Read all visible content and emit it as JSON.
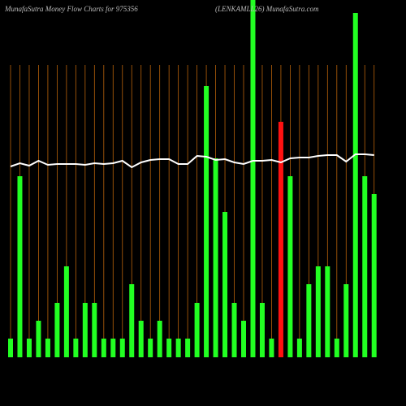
{
  "chart_data": {
    "type": "bar",
    "title": "MunafaSutra  Money Flow  Charts for 975356",
    "subtitle": "(LENKAMLL26) MunafaSutra.com",
    "categories": [
      null,
      null,
      null,
      null,
      null,
      null,
      null,
      null,
      null,
      null,
      null,
      null,
      null,
      null,
      null,
      null,
      null,
      null,
      null,
      null,
      null,
      null,
      null,
      null,
      null,
      null,
      null,
      null,
      null,
      null,
      null,
      null,
      null,
      null,
      null,
      null,
      null,
      null,
      null,
      null
    ],
    "series": [
      {
        "type": "bar",
        "colors": [
          "#22ff22",
          "#22ff22",
          "#22ff22",
          "#22ff22",
          "#22ff22",
          "#22ff22",
          "#22ff22",
          "#22ff22",
          "#22ff22",
          "#22ff22",
          "#22ff22",
          "#22ff22",
          "#22ff22",
          "#22ff22",
          "#22ff22",
          "#22ff22",
          "#22ff22",
          "#22ff22",
          "#22ff22",
          "#22ff22",
          "#22ff22",
          "#22ff22",
          "#22ff22",
          "#22ff22",
          "#22ff22",
          "#22ff22",
          "#22ff22",
          "#22ff22",
          "#22ff22",
          "#ff1111",
          "#22ff22",
          "#22ff22",
          "#22ff22",
          "#22ff22",
          "#22ff22",
          "#22ff22",
          "#22ff22",
          "#22ff22",
          "#22ff22",
          "#22ff22"
        ],
        "values": [
          23,
          223,
          23,
          45,
          23,
          67,
          112,
          23,
          67,
          67,
          23,
          23,
          23,
          90,
          45,
          23,
          45,
          23,
          23,
          23,
          67,
          334,
          245,
          179,
          67,
          45,
          440,
          67,
          23,
          290,
          223,
          23,
          90,
          112,
          112,
          23,
          90,
          424,
          223,
          201
        ]
      },
      {
        "type": "line",
        "color": "#ffffff",
        "values": [
          235,
          239,
          236,
          242,
          237,
          238,
          238,
          238,
          237,
          239,
          238,
          239,
          242,
          234,
          240,
          243,
          244,
          244,
          238,
          238,
          248,
          247,
          243,
          244,
          240,
          238,
          242,
          242,
          243,
          240,
          245,
          246,
          246,
          248,
          249,
          249,
          241,
          250,
          250,
          249
        ]
      }
    ],
    "ylim": [
      0,
      440
    ],
    "grid": true,
    "grid_color": "#b8620a"
  }
}
